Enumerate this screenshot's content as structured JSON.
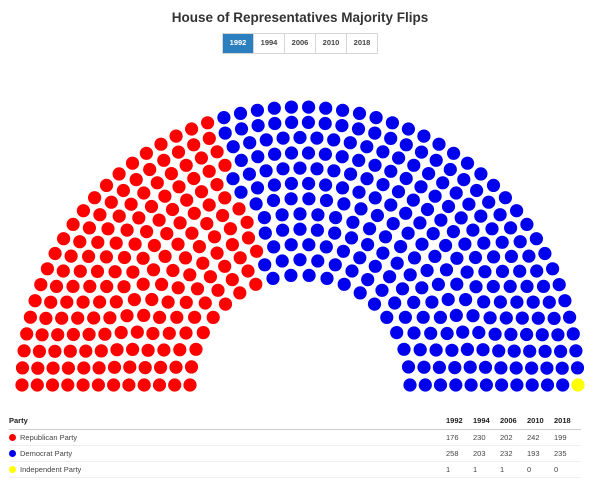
{
  "title": "House of Representatives Majority Flips",
  "year_tabs": [
    "1992",
    "1994",
    "2006",
    "2010",
    "2018"
  ],
  "active_year": "1992",
  "table": {
    "party_header": "Party",
    "rows": [
      {
        "party": "Republican Party",
        "color": "#ff0000",
        "values": [
          "176",
          "230",
          "202",
          "242",
          "199"
        ]
      },
      {
        "party": "Democrat Party",
        "color": "#0000ee",
        "values": [
          "258",
          "203",
          "232",
          "193",
          "235"
        ]
      },
      {
        "party": "Independent Party",
        "color": "#ffff00",
        "values": [
          "1",
          "1",
          "1",
          "0",
          "0"
        ]
      }
    ]
  },
  "chart_data": {
    "type": "parliament",
    "title": "House of Representatives Majority Flips",
    "categories": [
      "1992",
      "1994",
      "2006",
      "2010",
      "2018"
    ],
    "selected": "1992",
    "total_seats": 435,
    "series": [
      {
        "name": "Republican Party",
        "color": "#ff0000",
        "values": [
          176,
          230,
          202,
          242,
          199
        ]
      },
      {
        "name": "Democrat Party",
        "color": "#0000ee",
        "values": [
          258,
          203,
          232,
          193,
          235
        ]
      },
      {
        "name": "Independent Party",
        "color": "#ffff00",
        "values": [
          1,
          1,
          1,
          0,
          0
        ]
      }
    ]
  }
}
